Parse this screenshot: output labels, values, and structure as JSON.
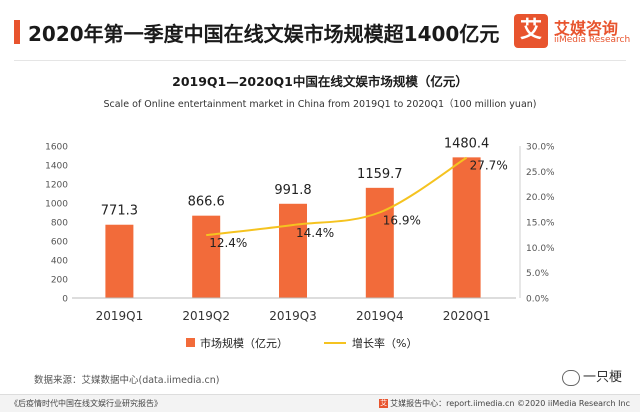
{
  "header": {
    "headline": "2020年第一季度中国在线文娱市场规模超1400亿元",
    "logo_mark": "艾",
    "logo_name": "艾媒咨询",
    "logo_sub": "iiMedia Research"
  },
  "colors": {
    "accent": "#e8542e",
    "bar": "#f26b3a",
    "line": "#f5c320"
  },
  "chart_data": {
    "type": "bar",
    "title": "2019Q1—2020Q1中国在线文娱市场规模（亿元）",
    "subtitle": "Scale of Online entertainment market in China from 2019Q1 to 2020Q1（100  million yuan)",
    "categories": [
      "2019Q1",
      "2019Q2",
      "2019Q3",
      "2019Q4",
      "2020Q1"
    ],
    "series": [
      {
        "name": "市场规模（亿元）",
        "type": "bar",
        "axis": "left",
        "values": [
          771.3,
          866.6,
          991.8,
          1159.7,
          1480.4
        ],
        "labels": [
          "771.3",
          "866.6",
          "991.8",
          "1159.7",
          "1480.4"
        ]
      },
      {
        "name": "增长率（%）",
        "type": "line",
        "axis": "right",
        "values": [
          null,
          12.4,
          14.4,
          16.9,
          27.7
        ],
        "labels": [
          "",
          "12.4%",
          "14.4%",
          "16.9%",
          "27.7%"
        ]
      }
    ],
    "ylim": [
      0,
      1600
    ],
    "yticks": [
      "0",
      "200",
      "400",
      "600",
      "800",
      "1000",
      "1200",
      "1400",
      "1600"
    ],
    "y2lim": [
      0,
      30
    ],
    "y2ticks": [
      "0.0%",
      "5.0%",
      "10.0%",
      "15.0%",
      "20.0%",
      "25.0%",
      "30.0%"
    ],
    "legend_position": "bottom",
    "grid": false
  },
  "footer": {
    "source": "数据来源：艾媒数据中心(data.iimedia.cn)",
    "report": "《后疫情时代中国在线文娱行业研究报告》",
    "footer_logo": "艾",
    "right": "艾媒报告中心：report.iimedia.cn  ©2020  iiMedia Research  Inc",
    "watermark": "一只梗"
  }
}
